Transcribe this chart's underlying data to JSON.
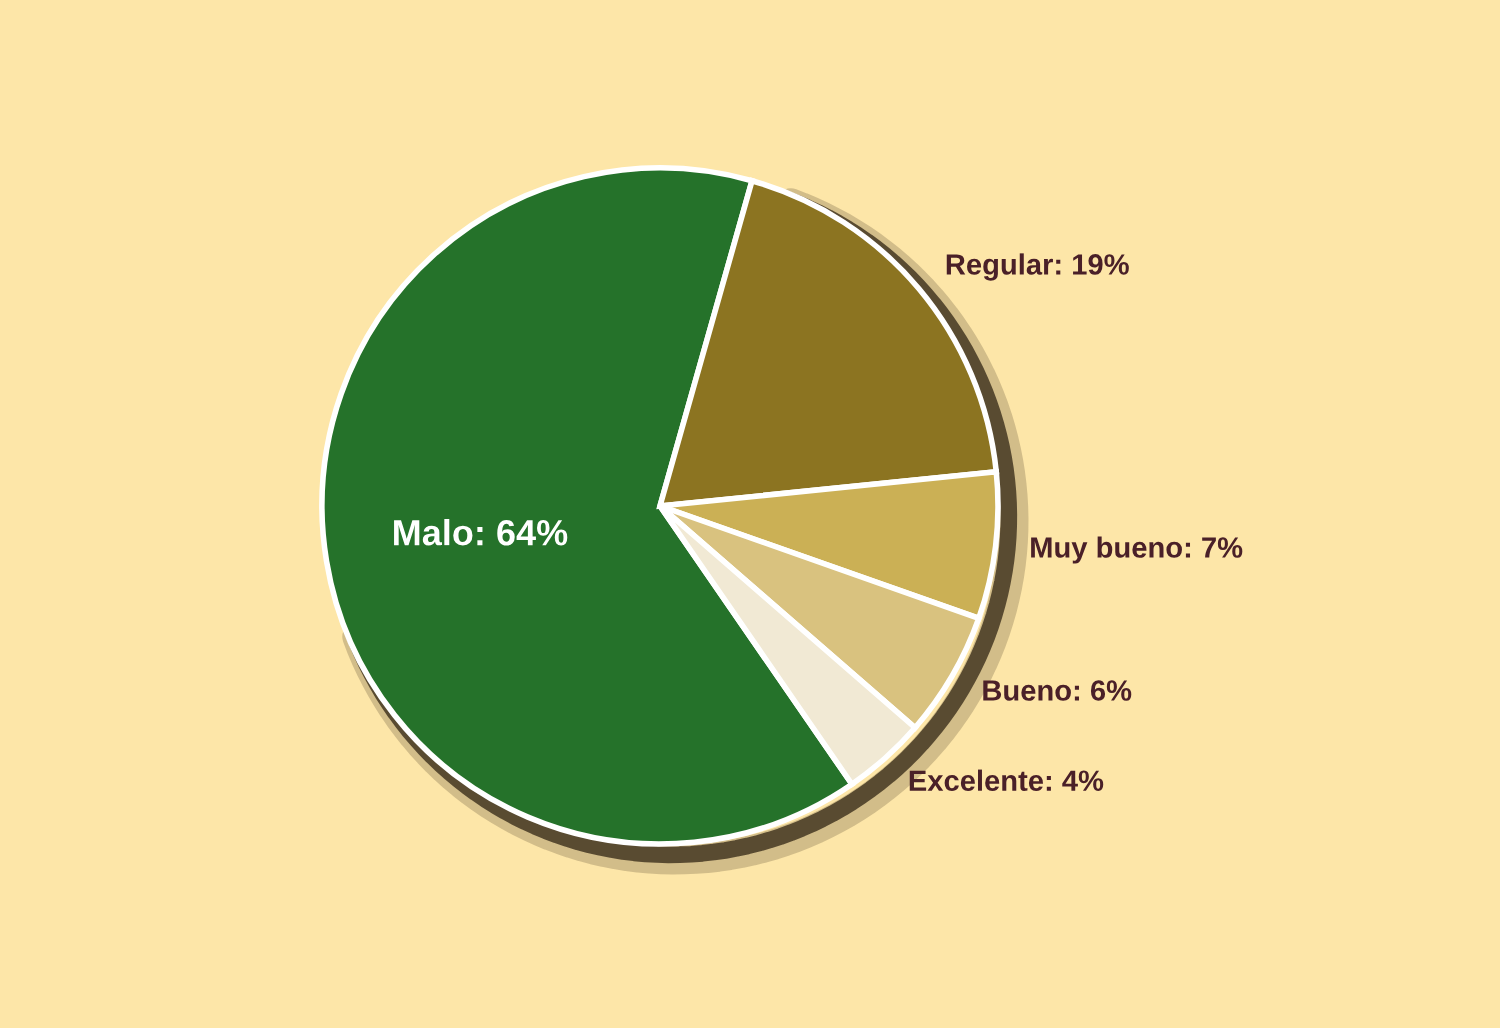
{
  "chart_data": {
    "type": "pie",
    "categories": [
      "Malo",
      "Regular",
      "Muy bueno",
      "Bueno",
      "Excelente"
    ],
    "values": [
      64,
      19,
      7,
      6,
      4
    ],
    "colors": [
      "#25722a",
      "#8c7421",
      "#cbb055",
      "#d9c27f",
      "#f1e9d4"
    ],
    "value_labels": [
      "64%",
      "19%",
      "7%",
      "6%",
      "4%"
    ]
  }
}
